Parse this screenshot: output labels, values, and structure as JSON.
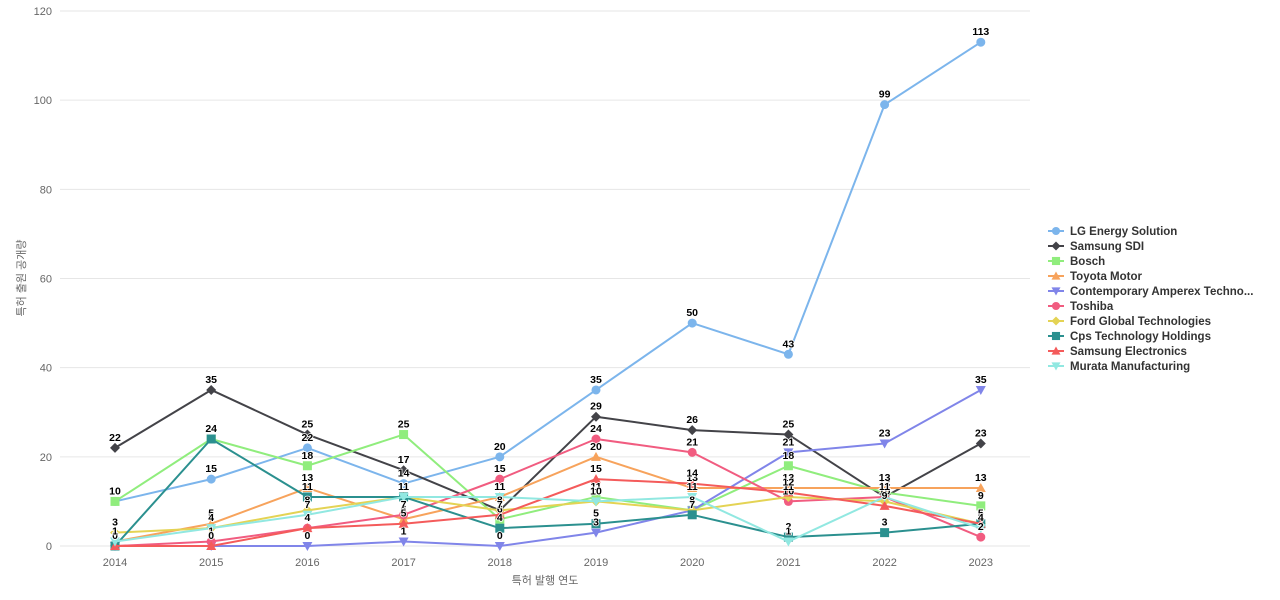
{
  "chart": {
    "background_color": "#ffffff",
    "grid_color": "#e6e6e6",
    "axis_text_color": "#666666",
    "point_label_color": "#000000",
    "legend_text_color": "#333333"
  },
  "chart_data": {
    "type": "line",
    "title": "",
    "xlabel": "특허 발행 연도",
    "ylabel": "특허 출원 공개량",
    "x": [
      2014,
      2015,
      2016,
      2017,
      2018,
      2019,
      2020,
      2021,
      2022,
      2023
    ],
    "y_ticks": [
      0,
      20,
      40,
      60,
      80,
      100,
      120
    ],
    "ylim": [
      0,
      120
    ],
    "grid": true,
    "legend_position": "right",
    "series": [
      {
        "name": "LG Energy Solution",
        "color": "#7cb5ec",
        "marker": "circle",
        "values": [
          10,
          15,
          22,
          14,
          20,
          35,
          50,
          43,
          99,
          113
        ]
      },
      {
        "name": "Samsung SDI",
        "color": "#434348",
        "marker": "diamond",
        "values": [
          22,
          35,
          25,
          17,
          8,
          29,
          26,
          25,
          11,
          23
        ]
      },
      {
        "name": "Bosch",
        "color": "#90ed7d",
        "marker": "square",
        "values": [
          10,
          24,
          18,
          25,
          6,
          11,
          8,
          18,
          12,
          9
        ]
      },
      {
        "name": "Toyota Motor",
        "color": "#f7a35c",
        "marker": "triangle",
        "values": [
          1,
          5,
          13,
          6,
          11,
          20,
          13,
          13,
          13,
          13
        ]
      },
      {
        "name": "Contemporary Amperex Techno...",
        "color": "#8085e9",
        "marker": "triangle-down",
        "values": [
          0,
          0,
          0,
          1,
          0,
          3,
          8,
          21,
          23,
          35
        ]
      },
      {
        "name": "Toshiba",
        "color": "#f15c80",
        "marker": "circle",
        "values": [
          0,
          1,
          4,
          7,
          15,
          24,
          21,
          10,
          11,
          2
        ]
      },
      {
        "name": "Ford Global Technologies",
        "color": "#e4d354",
        "marker": "diamond",
        "values": [
          3,
          4,
          8,
          11,
          8,
          10,
          8,
          11,
          10,
          5
        ]
      },
      {
        "name": "Cps Technology Holdings",
        "color": "#2b908f",
        "marker": "square",
        "values": [
          0,
          24,
          11,
          11,
          4,
          5,
          7,
          2,
          3,
          5
        ]
      },
      {
        "name": "Samsung Electronics",
        "color": "#f45b5b",
        "marker": "triangle",
        "values": [
          0,
          0,
          4,
          5,
          7,
          15,
          14,
          12,
          9,
          5
        ]
      },
      {
        "name": "Murata Manufacturing",
        "color": "#91e8e1",
        "marker": "triangle-down",
        "values": [
          1,
          4,
          7,
          11,
          11,
          10,
          11,
          1,
          11,
          4
        ]
      }
    ]
  }
}
